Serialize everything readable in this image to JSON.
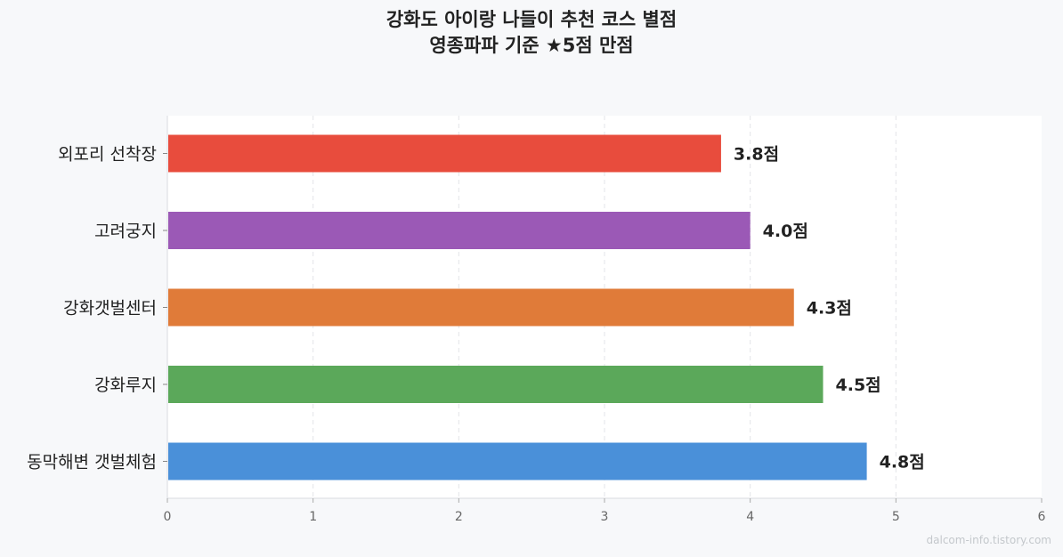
{
  "chart_data": {
    "type": "bar",
    "orientation": "horizontal",
    "title": "강화도 아이랑 나들이 추천 코스 별점",
    "subtitle": "영종파파 기준 ★5점 만점",
    "categories": [
      "외포리 선착장",
      "고려궁지",
      "강화갯벌센터",
      "강화루지",
      "동막해변 갯벌체험"
    ],
    "values": [
      3.8,
      4.0,
      4.3,
      4.5,
      4.8
    ],
    "value_labels": [
      "3.8점",
      "4.0점",
      "4.3점",
      "4.5점",
      "4.8점"
    ],
    "colors": [
      "#e84c3d",
      "#9b59b6",
      "#e07b39",
      "#5ba85a",
      "#4a90d9"
    ],
    "xlim": [
      0,
      6
    ],
    "xticks": [
      "0",
      "1",
      "2",
      "3",
      "4",
      "5",
      "6"
    ],
    "xlabel": "",
    "ylabel": "",
    "grid": "vertical dashed",
    "legend": "none"
  },
  "watermark": "dalcom-info.tistory.com"
}
